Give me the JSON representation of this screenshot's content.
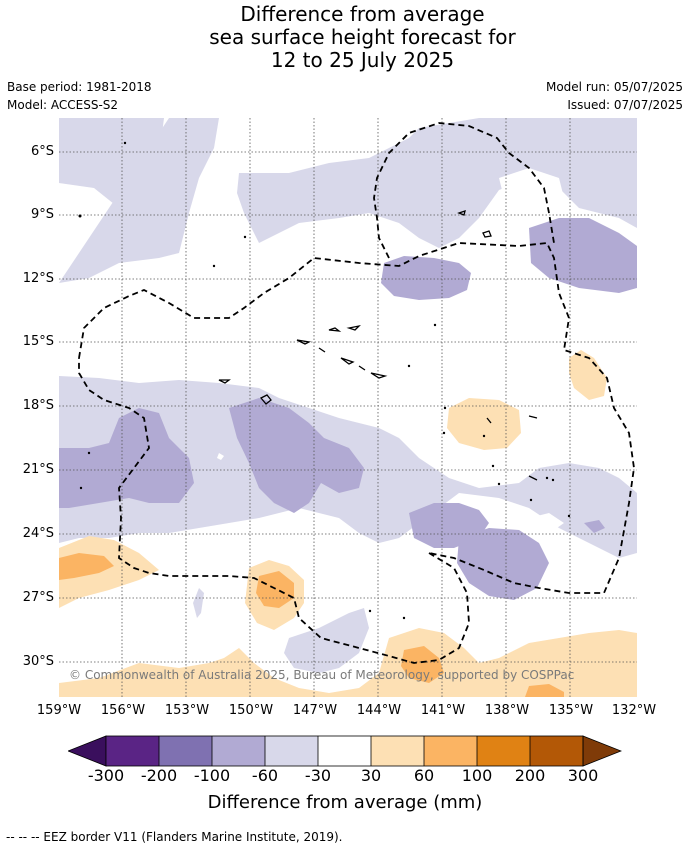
{
  "title": "Difference from average\nsea surface height forecast for\n12 to 25 July 2025",
  "meta": {
    "base_period": "Base period: 1981-2018",
    "model": "Model: ACCESS-S2",
    "model_run": "Model run: 05/07/2025",
    "issued": "Issued: 07/07/2025"
  },
  "map": {
    "lat_labels": [
      "6°S",
      "9°S",
      "12°S",
      "15°S",
      "18°S",
      "21°S",
      "24°S",
      "27°S",
      "30°S"
    ],
    "lon_labels": [
      "159°W",
      "156°W",
      "153°W",
      "150°W",
      "147°W",
      "144°W",
      "141°W",
      "138°W",
      "135°W",
      "132°W"
    ],
    "copyright": "© Commonwealth of Australia 2025, Bureau of Meteorology, supported by COSPPac",
    "colors": {
      "neg_60_30": "#d8d8ea",
      "neg_100_60": "#b1aad3",
      "neg_200_100": "#7f71b1",
      "neg_300_200": "#5a2485",
      "neg_extreme": "#3a0f5d",
      "neutral": "#ffffff",
      "pos_30_60": "#fde0b4",
      "pos_60_100": "#fbb463",
      "pos_100_200": "#e08214",
      "pos_200_300": "#b35806",
      "pos_extreme": "#7f3b08"
    }
  },
  "colorbar": {
    "ticks": [
      "-300",
      "-200",
      "-100",
      "-60",
      "-30",
      "30",
      "60",
      "100",
      "200",
      "300"
    ],
    "label": "Difference from average (mm)"
  },
  "eez_note": "--  --  -- EEZ border V11 (Flanders Marine Institute, 2019)."
}
